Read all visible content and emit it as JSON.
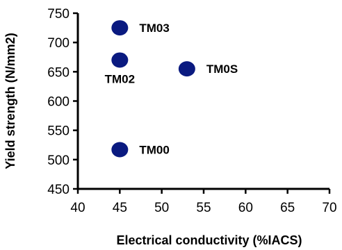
{
  "chart_data": {
    "type": "scatter",
    "title": "",
    "xlabel": "Electrical conductivity (%IACS)",
    "ylabel": "Yield strength (N/mm2)",
    "xlim": [
      40,
      70
    ],
    "ylim": [
      450,
      750
    ],
    "xticks": [
      40,
      45,
      50,
      55,
      60,
      65,
      70
    ],
    "yticks": [
      450,
      500,
      550,
      600,
      650,
      700,
      750
    ],
    "grid": false,
    "marker_color": "#0a1a80",
    "points": [
      {
        "label": "TM03",
        "x": 45,
        "y": 725,
        "label_side": "right"
      },
      {
        "label": "TM02",
        "x": 45,
        "y": 670,
        "label_side": "below"
      },
      {
        "label": "TM0S",
        "x": 53,
        "y": 655,
        "label_side": "right"
      },
      {
        "label": "TM00",
        "x": 45,
        "y": 517,
        "label_side": "right"
      }
    ]
  }
}
